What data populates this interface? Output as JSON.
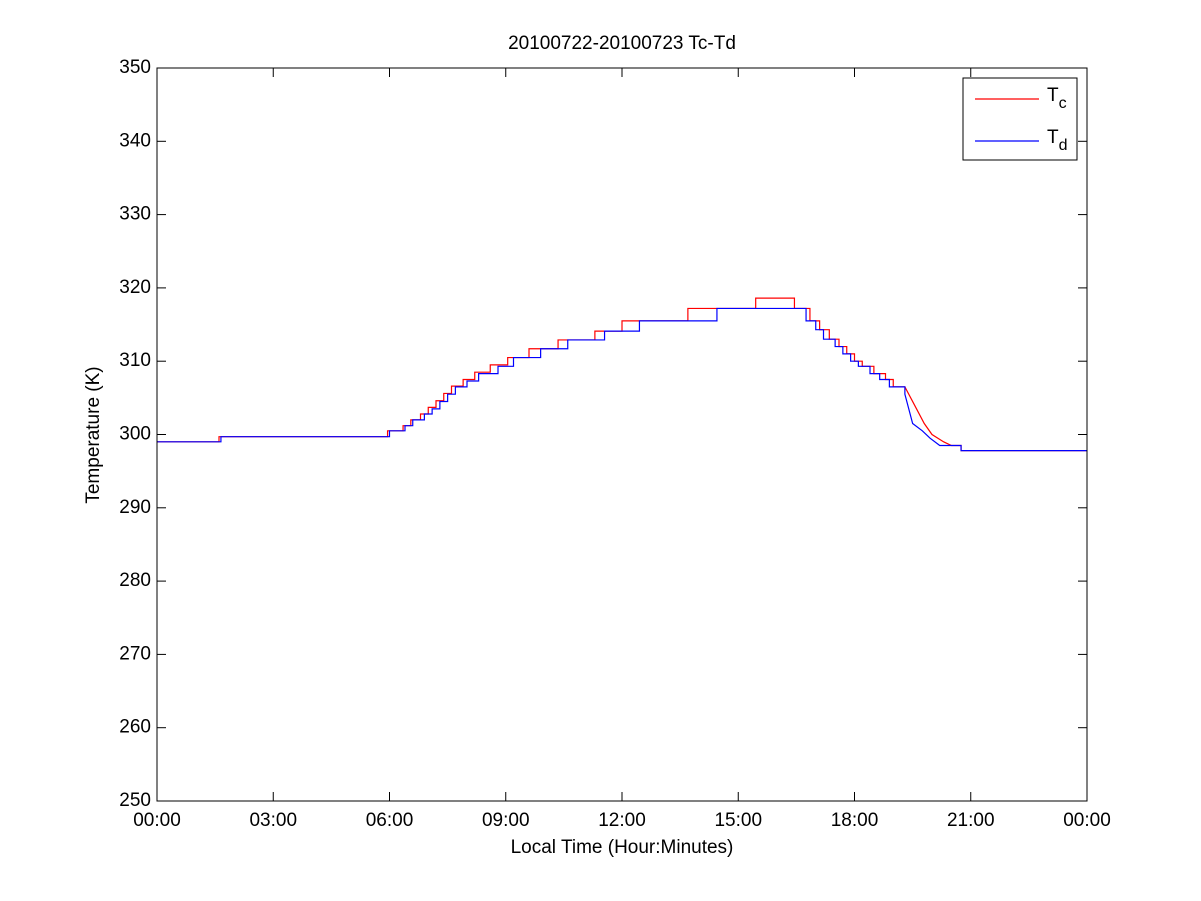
{
  "chart_data": {
    "type": "line",
    "title": "20100722-20100723 Tc-Td",
    "x_label": "Local Time (Hour:Minutes)",
    "y_label": "Temperature (K)",
    "xlim": [
      0,
      24
    ],
    "xticks": [
      {
        "value": 0,
        "label": "00:00"
      },
      {
        "value": 3,
        "label": "03:00"
      },
      {
        "value": 6,
        "label": "06:00"
      },
      {
        "value": 9,
        "label": "09:00"
      },
      {
        "value": 12,
        "label": "12:00"
      },
      {
        "value": 15,
        "label": "15:00"
      },
      {
        "value": 18,
        "label": "18:00"
      },
      {
        "value": 21,
        "label": "21:00"
      },
      {
        "value": 24,
        "label": "00:00"
      }
    ],
    "ylim": [
      250,
      350
    ],
    "yticks": [
      250,
      260,
      270,
      280,
      290,
      300,
      310,
      320,
      330,
      340,
      350
    ],
    "legend": "northeast",
    "series": [
      {
        "name": "Tc",
        "color": "#ff0000",
        "x": [
          0,
          1.6,
          1.6,
          5.95,
          5.95,
          6.35,
          6.35,
          6.55,
          6.55,
          6.8,
          6.8,
          7.0,
          7.0,
          7.2,
          7.2,
          7.4,
          7.4,
          7.6,
          7.6,
          7.9,
          7.9,
          8.2,
          8.2,
          8.6,
          8.6,
          9.05,
          9.05,
          9.6,
          9.6,
          10.35,
          10.35,
          11.3,
          11.3,
          12.0,
          12.0,
          13.7,
          13.7,
          15.45,
          15.45,
          16.45,
          16.45,
          16.85,
          16.85,
          17.1,
          17.1,
          17.35,
          17.35,
          17.6,
          17.6,
          17.8,
          17.8,
          18.0,
          18.0,
          18.2,
          18.2,
          18.5,
          18.5,
          18.8,
          18.8,
          19.0,
          19.0,
          19.3,
          19.6,
          19.8,
          20.0,
          20.3,
          20.5,
          20.75,
          20.75,
          24
        ],
        "values": [
          299.0,
          299.0,
          299.7,
          299.7,
          300.5,
          300.5,
          301.2,
          301.2,
          302.0,
          302.0,
          302.8,
          302.8,
          303.7,
          303.7,
          304.6,
          304.6,
          305.6,
          305.6,
          306.6,
          306.6,
          307.5,
          307.5,
          308.5,
          308.5,
          309.5,
          309.5,
          310.5,
          310.5,
          311.7,
          311.7,
          312.9,
          312.9,
          314.1,
          314.1,
          315.5,
          315.5,
          317.2,
          317.2,
          318.6,
          318.6,
          317.2,
          317.2,
          315.5,
          315.5,
          314.3,
          314.3,
          313.0,
          313.0,
          312.0,
          312.0,
          311.0,
          311.0,
          310.0,
          310.0,
          309.3,
          309.3,
          308.3,
          308.3,
          307.5,
          307.5,
          306.5,
          306.5,
          303.5,
          301.5,
          300.0,
          299.0,
          298.5,
          298.5,
          297.8,
          297.8
        ]
      },
      {
        "name": "Td",
        "color": "#0000ff",
        "x": [
          0,
          1.65,
          1.65,
          6.0,
          6.0,
          6.4,
          6.4,
          6.6,
          6.6,
          6.9,
          6.9,
          7.1,
          7.1,
          7.3,
          7.3,
          7.5,
          7.5,
          7.7,
          7.7,
          8.0,
          8.0,
          8.3,
          8.3,
          8.8,
          8.8,
          9.2,
          9.2,
          9.9,
          9.9,
          10.6,
          10.6,
          11.55,
          11.55,
          12.45,
          12.45,
          14.45,
          14.45,
          16.75,
          16.75,
          17.0,
          17.0,
          17.2,
          17.2,
          17.5,
          17.5,
          17.7,
          17.7,
          17.9,
          17.9,
          18.1,
          18.1,
          18.4,
          18.4,
          18.65,
          18.65,
          18.9,
          18.9,
          19.3,
          19.3,
          19.5,
          19.75,
          19.95,
          20.2,
          20.75,
          20.75,
          24
        ],
        "values": [
          299.0,
          299.0,
          299.7,
          299.7,
          300.5,
          300.5,
          301.2,
          301.2,
          302.0,
          302.0,
          302.8,
          302.8,
          303.5,
          303.5,
          304.5,
          304.5,
          305.5,
          305.5,
          306.5,
          306.5,
          307.3,
          307.3,
          308.3,
          308.3,
          309.3,
          309.3,
          310.5,
          310.5,
          311.7,
          311.7,
          312.9,
          312.9,
          314.1,
          314.1,
          315.5,
          315.5,
          317.2,
          317.2,
          315.5,
          315.5,
          314.3,
          314.3,
          313.0,
          313.0,
          312.0,
          312.0,
          311.0,
          311.0,
          310.0,
          310.0,
          309.3,
          309.3,
          308.3,
          308.3,
          307.5,
          307.5,
          306.5,
          306.5,
          305.5,
          301.5,
          300.5,
          299.5,
          298.5,
          298.5,
          297.8,
          297.8
        ]
      }
    ]
  }
}
